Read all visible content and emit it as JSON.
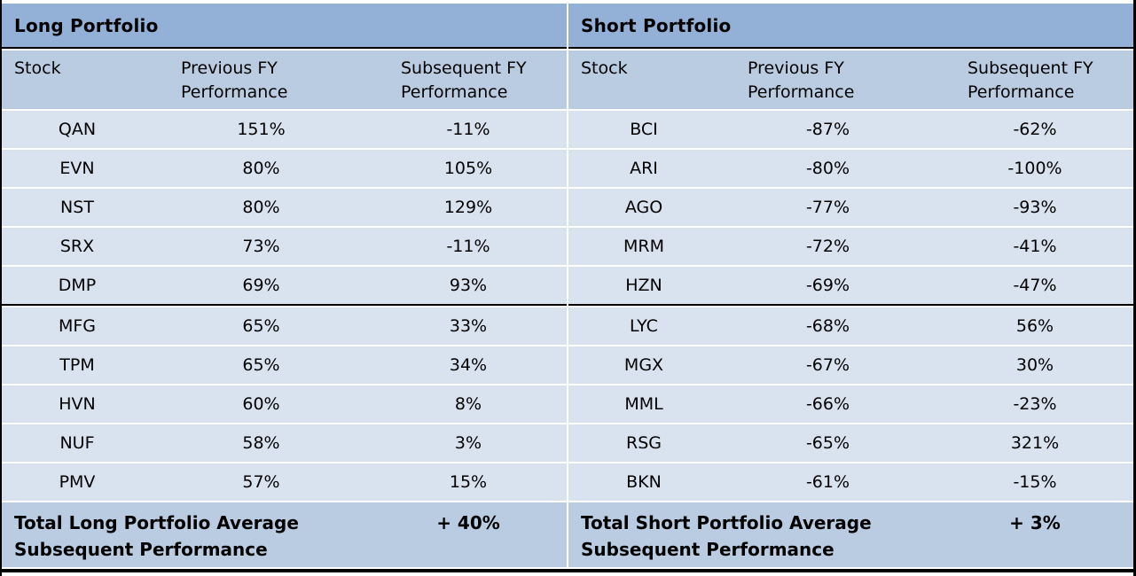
{
  "chart_data": [
    {
      "type": "table",
      "title": "Long Portfolio",
      "columns": [
        "Stock",
        "Previous FY Performance",
        "Subsequent FY Performance"
      ],
      "rows": [
        [
          "QAN",
          "151%",
          "-11%"
        ],
        [
          "EVN",
          "80%",
          "105%"
        ],
        [
          "NST",
          "80%",
          "129%"
        ],
        [
          "SRX",
          "73%",
          "-11%"
        ],
        [
          "DMP",
          "69%",
          "93%"
        ],
        [
          "MFG",
          "65%",
          "33%"
        ],
        [
          "TPM",
          "65%",
          "34%"
        ],
        [
          "HVN",
          "60%",
          "8%"
        ],
        [
          "NUF",
          "58%",
          "3%"
        ],
        [
          "PMV",
          "57%",
          "15%"
        ]
      ],
      "summary_label": "Total Long Portfolio Average Subsequent Performance",
      "summary_value": "+ 40%"
    },
    {
      "type": "table",
      "title": "Short Portfolio",
      "columns": [
        "Stock",
        "Previous FY Performance",
        "Subsequent FY Performance"
      ],
      "rows": [
        [
          "BCI",
          "-87%",
          "-62%"
        ],
        [
          "ARI",
          "-80%",
          "-100%"
        ],
        [
          "AGO",
          "-77%",
          "-93%"
        ],
        [
          "MRM",
          "-72%",
          "-41%"
        ],
        [
          "HZN",
          "-69%",
          "-47%"
        ],
        [
          "LYC",
          "-68%",
          "56%"
        ],
        [
          "MGX",
          "-67%",
          "30%"
        ],
        [
          "MML",
          "-66%",
          "-23%"
        ],
        [
          "RSG",
          "-65%",
          "321%"
        ],
        [
          "BKN",
          "-61%",
          "-15%"
        ]
      ],
      "summary_label": "Total Short Portfolio Average Subsequent Performance",
      "summary_value": "+ 3%"
    }
  ],
  "header_lines": {
    "stock": "Stock",
    "prev_line1": "Previous FY",
    "prev_line2": "Performance",
    "subs_line1": "Subsequent FY",
    "subs_line2": "Performance"
  },
  "colors": {
    "title_bg": "#93b1d7",
    "header_bg": "#b9cce2",
    "row_bg": "#d9e2ef",
    "summary_bg": "#b9cce2",
    "separator_white": "#ffffff",
    "separator_black": "#000000",
    "text": "#000000"
  }
}
